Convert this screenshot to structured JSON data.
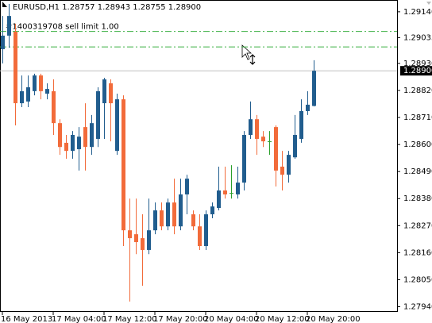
{
  "chart_data": {
    "type": "candlestick",
    "title": "EURUSD,H1  1.28757 1.28943 1.28755 1.28900",
    "annotation": "#1400319708 sell limit 1.00",
    "order_lines": [
      1.2906,
      1.28997
    ],
    "order_line_color": "#3cb043",
    "current_price": {
      "value": 1.289,
      "label": "1.28900"
    },
    "up_color": "#215d8e",
    "down_color": "#f26b3a",
    "doji_color": "#2ca02c",
    "categories": [
      "16 May 2013",
      null,
      null,
      null,
      null,
      null,
      null,
      null,
      "17 May 04:00",
      null,
      null,
      null,
      null,
      null,
      null,
      null,
      "17 May 12:00",
      null,
      null,
      null,
      null,
      null,
      null,
      null,
      "17 May 20:00",
      null,
      null,
      null,
      null,
      null,
      null,
      null,
      "20 May 04:00",
      null,
      null,
      null,
      null,
      null,
      null,
      null,
      "20 May 12:00",
      null,
      null,
      null,
      null,
      null,
      null,
      null,
      "20 May 20:00",
      null
    ],
    "open": [
      1.28988,
      1.29043,
      1.29059,
      1.28768,
      1.28775,
      1.28817,
      1.28881,
      1.28807,
      1.28817,
      1.28687,
      1.28607,
      1.28574,
      1.28581,
      1.28671,
      1.2859,
      1.28623,
      1.28768,
      1.28849,
      1.28574,
      1.28784,
      1.28251,
      1.28235,
      1.28219,
      1.28171,
      1.28251,
      1.28332,
      1.28267,
      1.28364,
      1.28267,
      1.28397,
      1.28316,
      1.28267,
      1.28187,
      1.28316,
      1.28342,
      1.28413,
      1.28403,
      1.28397,
      1.28445,
      1.28639,
      1.28703,
      1.28632,
      1.28613,
      1.28671,
      1.2851,
      1.28477,
      1.28548,
      1.28623,
      1.28736,
      1.28757
    ],
    "high": [
      1.29123,
      1.29172,
      1.29091,
      1.28881,
      1.28881,
      1.28888,
      1.28888,
      1.28849,
      1.28865,
      1.28703,
      1.28639,
      1.28655,
      1.28671,
      1.28768,
      1.2872,
      1.28833,
      1.28871,
      1.28865,
      1.28807,
      1.288,
      1.2838,
      1.2838,
      1.28316,
      1.2838,
      1.28364,
      1.28364,
      1.2838,
      1.28461,
      1.28461,
      1.28477,
      1.28332,
      1.28316,
      1.28332,
      1.28364,
      1.2851,
      1.2851,
      1.28516,
      1.2851,
      1.28655,
      1.28775,
      1.2872,
      1.28655,
      1.28655,
      1.28678,
      1.28574,
      1.28574,
      1.2872,
      1.28784,
      1.28817,
      1.28943
    ],
    "low": [
      1.2893,
      1.28994,
      1.28678,
      1.28752,
      1.28752,
      1.288,
      1.28784,
      1.28784,
      1.28639,
      1.28558,
      1.28542,
      1.28542,
      1.28494,
      1.28494,
      1.28558,
      1.2859,
      1.28623,
      1.28613,
      1.28558,
      1.28187,
      1.27961,
      1.28154,
      1.28025,
      1.28154,
      1.28235,
      1.28251,
      1.28251,
      1.28235,
      1.28251,
      1.28316,
      1.28251,
      1.28171,
      1.28171,
      1.283,
      1.28332,
      1.2838,
      1.2838,
      1.2838,
      1.28413,
      1.28623,
      1.28558,
      1.2859,
      1.28558,
      1.28429,
      1.28413,
      1.28445,
      1.28542,
      1.28607,
      1.2872,
      1.28755
    ],
    "close": [
      1.29043,
      1.29123,
      1.28768,
      1.28817,
      1.28833,
      1.28881,
      1.28817,
      1.28826,
      1.28687,
      1.2859,
      1.28574,
      1.28639,
      1.28632,
      1.2859,
      1.28687,
      1.28817,
      1.28865,
      1.28768,
      1.28784,
      1.28251,
      1.28219,
      1.28203,
      1.28171,
      1.28251,
      1.28332,
      1.28267,
      1.28364,
      1.28267,
      1.28397,
      1.28461,
      1.28267,
      1.28187,
      1.28316,
      1.28348,
      1.28413,
      1.28397,
      1.28403,
      1.28445,
      1.28639,
      1.28703,
      1.28623,
      1.28613,
      1.28613,
      1.28494,
      1.28477,
      1.28558,
      1.28639,
      1.28736,
      1.28762,
      1.289
    ],
    "ylim": [
      1.27919,
      1.29188
    ],
    "yticks": [
      {
        "value": 1.2914,
        "label": "1.29140"
      },
      {
        "value": 1.29035,
        "label": "1.29035"
      },
      {
        "value": 1.2893,
        "label": "1.28930"
      },
      {
        "value": 1.2882,
        "label": "1.28820"
      },
      {
        "value": 1.2871,
        "label": "1.28710"
      },
      {
        "value": 1.286,
        "label": "1.28600"
      },
      {
        "value": 1.2849,
        "label": "1.28490"
      },
      {
        "value": 1.2838,
        "label": "1.28380"
      },
      {
        "value": 1.2827,
        "label": "1.28270"
      },
      {
        "value": 1.2816,
        "label": "1.28160"
      },
      {
        "value": 1.2805,
        "label": "1.28050"
      },
      {
        "value": 1.2794,
        "label": "1.27940"
      }
    ]
  }
}
